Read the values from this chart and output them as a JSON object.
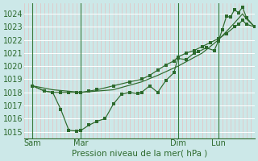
{
  "xlabel": "Pression niveau de la mer( hPa )",
  "bg_color": "#cce8e8",
  "grid_color": "#ffffff",
  "vline_color": "#3a7a3a",
  "line_color": "#2d6a2d",
  "ylim": [
    1014.5,
    1024.8
  ],
  "yticks": [
    1015,
    1016,
    1017,
    1018,
    1019,
    1020,
    1021,
    1022,
    1023,
    1024
  ],
  "xlim": [
    0,
    228
  ],
  "day_labels": [
    "Sam",
    "Mar",
    "Dim",
    "Lun"
  ],
  "day_positions": [
    8,
    56,
    152,
    192
  ],
  "vline_positions": [
    8,
    56,
    152,
    192
  ],
  "line1": [
    [
      8,
      1018.5
    ],
    [
      20,
      1018.1
    ],
    [
      28,
      1018.0
    ],
    [
      36,
      1016.7
    ],
    [
      44,
      1015.1
    ],
    [
      52,
      1015.05
    ],
    [
      56,
      1015.1
    ],
    [
      64,
      1015.5
    ],
    [
      72,
      1015.8
    ],
    [
      80,
      1016.0
    ],
    [
      88,
      1017.1
    ],
    [
      96,
      1017.85
    ],
    [
      104,
      1018.0
    ],
    [
      112,
      1017.9
    ],
    [
      116,
      1018.0
    ],
    [
      124,
      1018.5
    ],
    [
      132,
      1018.0
    ],
    [
      140,
      1018.9
    ],
    [
      148,
      1019.5
    ],
    [
      152,
      1020.6
    ],
    [
      160,
      1020.5
    ],
    [
      168,
      1021.0
    ],
    [
      172,
      1021.1
    ],
    [
      180,
      1021.4
    ],
    [
      188,
      1021.2
    ],
    [
      192,
      1021.9
    ],
    [
      196,
      1022.8
    ],
    [
      200,
      1023.8
    ],
    [
      204,
      1023.75
    ],
    [
      208,
      1024.3
    ],
    [
      212,
      1024.1
    ],
    [
      216,
      1024.5
    ],
    [
      220,
      1023.7
    ],
    [
      228,
      1023.0
    ]
  ],
  "line2": [
    [
      8,
      1018.5
    ],
    [
      20,
      1018.1
    ],
    [
      28,
      1018.0
    ],
    [
      36,
      1018.0
    ],
    [
      44,
      1018.0
    ],
    [
      52,
      1018.0
    ],
    [
      56,
      1018.0
    ],
    [
      64,
      1018.1
    ],
    [
      72,
      1018.2
    ],
    [
      88,
      1018.5
    ],
    [
      104,
      1018.8
    ],
    [
      116,
      1019.0
    ],
    [
      124,
      1019.3
    ],
    [
      132,
      1019.7
    ],
    [
      140,
      1020.1
    ],
    [
      148,
      1020.4
    ],
    [
      152,
      1020.7
    ],
    [
      160,
      1021.0
    ],
    [
      168,
      1021.2
    ],
    [
      176,
      1021.5
    ],
    [
      184,
      1021.8
    ],
    [
      192,
      1022.1
    ],
    [
      200,
      1022.5
    ],
    [
      208,
      1023.0
    ],
    [
      212,
      1023.2
    ],
    [
      216,
      1023.5
    ],
    [
      220,
      1023.2
    ],
    [
      228,
      1023.0
    ]
  ],
  "line3": [
    [
      8,
      1018.5
    ],
    [
      28,
      1018.2
    ],
    [
      56,
      1018.0
    ],
    [
      88,
      1018.2
    ],
    [
      116,
      1018.8
    ],
    [
      132,
      1019.3
    ],
    [
      152,
      1020.0
    ],
    [
      176,
      1021.0
    ],
    [
      192,
      1022.0
    ],
    [
      208,
      1023.3
    ],
    [
      216,
      1024.0
    ],
    [
      220,
      1023.6
    ],
    [
      228,
      1023.0
    ]
  ]
}
